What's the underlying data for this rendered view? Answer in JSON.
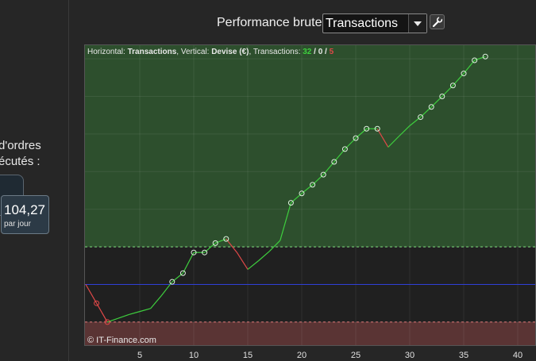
{
  "sidebar": {
    "stat_label": "d'ordres\nécutés :",
    "value": "104,27",
    "value_unit": "par jour"
  },
  "header": {
    "title": "Performance brute",
    "select_value": "Transactions",
    "wrench_icon": "wrench-icon"
  },
  "info_bar": {
    "horizontal_label": "Horizontal: ",
    "horizontal_value": "Transactions",
    "vertical_label": ", Vertical: ",
    "vertical_value": "Devise (€)",
    "transactions_label": ", Transactions: ",
    "wins": "32",
    "sep1": " / ",
    "neutral": "0",
    "sep2": " / ",
    "losses": "5"
  },
  "watermark": "© IT-Finance.com",
  "colors": {
    "profit_zone": "#2d4f2d",
    "loss_zone": "#5a3434",
    "win_line": "#3ecf3e",
    "loss_line": "#e04848",
    "baseline": "#2f3fd8",
    "wins_text": "#3ecf3e",
    "losses_text": "#e04848"
  },
  "chart_data": {
    "type": "line",
    "xlabel": "",
    "ylabel": "",
    "xlim": [
      0,
      41
    ],
    "x_ticks": [
      5,
      10,
      15,
      20,
      25,
      30,
      35,
      40
    ],
    "y_ticks_visible": false,
    "grid": true,
    "series": [
      {
        "points": [
          [
            0,
            0
          ],
          [
            1,
            -0.5
          ],
          [
            2,
            -1
          ],
          [
            3,
            -0.9
          ],
          [
            4,
            -0.8
          ],
          [
            5,
            -0.72
          ],
          [
            6,
            -0.64
          ],
          [
            7,
            -0.3
          ],
          [
            8,
            0.07
          ],
          [
            9,
            0.3
          ],
          [
            10,
            0.85
          ],
          [
            11,
            0.85
          ],
          [
            12,
            1.1
          ],
          [
            13,
            1.21
          ],
          [
            14,
            0.85
          ],
          [
            15,
            0.4
          ],
          [
            16,
            0.63
          ],
          [
            17,
            0.88
          ],
          [
            18,
            1.17
          ],
          [
            19,
            2.17
          ],
          [
            20,
            2.42
          ],
          [
            21,
            2.65
          ],
          [
            22,
            2.92
          ],
          [
            23,
            3.26
          ],
          [
            24,
            3.6
          ],
          [
            25,
            3.89
          ],
          [
            26,
            4.14
          ],
          [
            27,
            4.14
          ],
          [
            28,
            3.65
          ],
          [
            29,
            3.94
          ],
          [
            30,
            4.22
          ],
          [
            31,
            4.45
          ],
          [
            32,
            4.72
          ],
          [
            33,
            5.0
          ],
          [
            34,
            5.29
          ],
          [
            35,
            5.61
          ],
          [
            36,
            5.96
          ],
          [
            37,
            6.06
          ]
        ],
        "markers": [
          1,
          2,
          8,
          9,
          10,
          11,
          12,
          13,
          19,
          20,
          21,
          22,
          23,
          24,
          25,
          26,
          27,
          31,
          32,
          33,
          34,
          35,
          36,
          37
        ],
        "losing_segments": [
          [
            0,
            2
          ],
          [
            13,
            15
          ],
          [
            27,
            28
          ]
        ]
      }
    ],
    "baseline": 0,
    "upper_threshold": 1.0,
    "lower_threshold": -1.0
  }
}
